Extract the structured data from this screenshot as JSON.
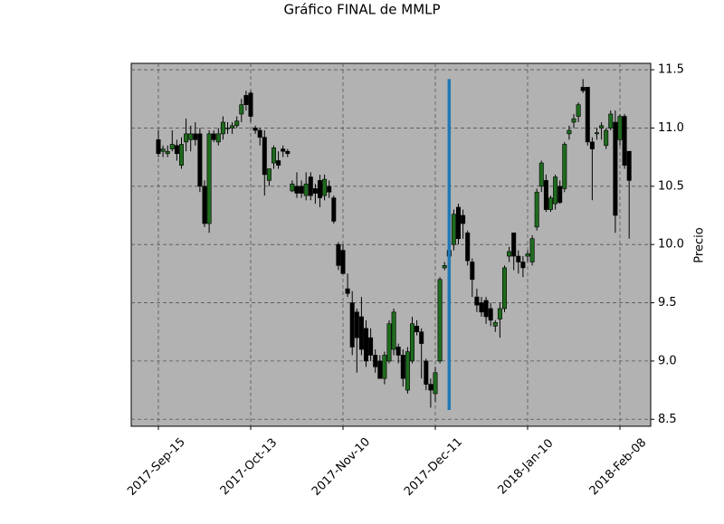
{
  "chart_data": {
    "type": "candlestick",
    "title": "Gráfico FINAL de MMLP",
    "ylabel": "Precio",
    "categories": [
      "2017-Sep-15",
      null,
      null,
      null,
      null,
      null,
      null,
      null,
      null,
      null,
      null,
      null,
      null,
      null,
      null,
      null,
      null,
      null,
      null,
      null,
      "2017-Oct-13",
      null,
      null,
      null,
      null,
      null,
      null,
      null,
      null,
      null,
      null,
      null,
      null,
      null,
      null,
      null,
      null,
      null,
      null,
      null,
      "2017-Nov-10",
      null,
      null,
      null,
      null,
      null,
      null,
      null,
      null,
      null,
      null,
      null,
      null,
      null,
      null,
      null,
      null,
      null,
      null,
      null,
      "2017-Dec-11",
      null,
      null,
      null,
      null,
      null,
      null,
      null,
      null,
      null,
      null,
      null,
      null,
      null,
      null,
      null,
      null,
      null,
      null,
      null,
      "2018-Jan-10",
      null,
      null,
      null,
      null,
      null,
      null,
      null,
      null,
      null,
      null,
      null,
      null,
      null,
      null,
      null,
      null,
      null,
      null,
      null,
      "2018-Feb-08",
      null,
      null
    ],
    "open": [
      10.9,
      10.8,
      10.78,
      10.82,
      10.85,
      10.68,
      10.88,
      10.9,
      10.95,
      10.95,
      10.5,
      10.18,
      10.95,
      10.88,
      10.95,
      11.0,
      11.0,
      11.02,
      11.12,
      11.28,
      11.3,
      11.0,
      10.98,
      10.92,
      10.55,
      10.7,
      10.72,
      10.82,
      10.8,
      10.46,
      10.5,
      10.5,
      10.42,
      10.58,
      10.48,
      10.55,
      10.42,
      10.5,
      10.4,
      10.0,
      9.95,
      9.62,
      9.5,
      9.42,
      9.38,
      9.28,
      9.2,
      9.05,
      9.0,
      8.85,
      9.0,
      9.1,
      9.12,
      9.05,
      8.75,
      9.0,
      9.3,
      9.25,
      9.0,
      8.8,
      8.72,
      9.0,
      9.8,
      9.95,
      10.0,
      10.32,
      10.25,
      10.1,
      9.85,
      9.55,
      9.5,
      9.52,
      9.45,
      9.3,
      9.36,
      9.45,
      9.9,
      10.1,
      9.9,
      9.85,
      9.9,
      9.85,
      10.15,
      10.5,
      10.55,
      10.3,
      10.35,
      10.5,
      10.48,
      10.95,
      11.05,
      11.1,
      11.35,
      11.35,
      10.88,
      10.95,
      11.0,
      10.85,
      11.0,
      11.05,
      10.9,
      11.1,
      10.8
    ],
    "high": [
      10.98,
      10.85,
      10.85,
      10.98,
      10.9,
      10.92,
      11.08,
      11.02,
      11.05,
      11.0,
      10.55,
      10.98,
      10.98,
      11.0,
      11.1,
      11.05,
      11.05,
      11.1,
      11.25,
      11.32,
      11.32,
      11.02,
      11.0,
      10.98,
      10.65,
      10.85,
      10.8,
      10.85,
      10.82,
      10.55,
      10.62,
      10.55,
      10.62,
      10.62,
      10.52,
      10.6,
      10.6,
      10.55,
      10.42,
      10.02,
      10.0,
      9.75,
      9.6,
      9.45,
      9.55,
      9.35,
      9.28,
      9.1,
      9.05,
      9.08,
      9.35,
      9.45,
      9.15,
      9.1,
      9.12,
      9.38,
      9.35,
      9.28,
      9.02,
      8.85,
      8.95,
      9.72,
      9.85,
      10.0,
      10.3,
      10.35,
      10.3,
      10.12,
      9.88,
      9.62,
      9.55,
      9.55,
      9.5,
      9.35,
      9.5,
      9.82,
      9.98,
      10.1,
      9.95,
      9.9,
      9.95,
      10.08,
      10.48,
      10.72,
      10.6,
      10.42,
      10.6,
      10.55,
      10.88,
      11.02,
      11.12,
      11.22,
      11.42,
      11.35,
      10.92,
      11.0,
      11.05,
      11.0,
      11.15,
      11.15,
      11.12,
      11.12,
      10.8
    ],
    "low": [
      10.75,
      10.75,
      10.75,
      10.8,
      10.72,
      10.65,
      10.8,
      10.8,
      10.85,
      10.45,
      10.15,
      10.1,
      10.88,
      10.85,
      10.9,
      10.95,
      10.95,
      11.0,
      11.05,
      11.15,
      11.05,
      10.95,
      10.85,
      10.42,
      10.5,
      10.65,
      10.65,
      10.75,
      10.75,
      10.45,
      10.4,
      10.4,
      10.38,
      10.38,
      10.35,
      10.32,
      10.38,
      10.4,
      10.18,
      9.78,
      9.75,
      9.55,
      9.05,
      8.9,
      9.05,
      8.95,
      9.0,
      8.9,
      8.85,
      8.8,
      8.98,
      9.05,
      8.98,
      8.78,
      8.72,
      8.98,
      9.22,
      8.85,
      8.75,
      8.6,
      8.65,
      8.98,
      9.78,
      9.88,
      9.95,
      10.0,
      10.05,
      9.82,
      9.55,
      9.42,
      9.38,
      9.32,
      9.3,
      9.25,
      9.2,
      9.42,
      9.85,
      9.78,
      9.75,
      9.72,
      9.85,
      9.82,
      10.12,
      10.45,
      10.28,
      10.28,
      10.3,
      10.35,
      10.45,
      10.9,
      11.0,
      11.05,
      11.3,
      10.85,
      10.38,
      10.9,
      10.9,
      10.82,
      10.98,
      10.1,
      10.85,
      10.65,
      10.05
    ],
    "close": [
      10.78,
      10.82,
      10.8,
      10.86,
      10.78,
      10.86,
      10.95,
      10.95,
      10.9,
      10.5,
      10.18,
      10.95,
      10.9,
      10.95,
      11.05,
      11.0,
      11.02,
      11.06,
      11.2,
      11.2,
      11.1,
      10.98,
      10.92,
      10.6,
      10.65,
      10.83,
      10.68,
      10.8,
      10.78,
      10.52,
      10.44,
      10.44,
      10.52,
      10.42,
      10.44,
      10.4,
      10.56,
      10.45,
      10.2,
      9.82,
      9.75,
      9.58,
      9.12,
      9.2,
      9.1,
      9.0,
      9.05,
      8.95,
      8.85,
      9.05,
      9.32,
      9.42,
      9.05,
      8.85,
      9.08,
      9.32,
      9.25,
      9.15,
      8.8,
      8.75,
      8.9,
      9.7,
      9.82,
      9.9,
      10.26,
      10.05,
      10.18,
      9.86,
      9.7,
      9.48,
      9.42,
      9.38,
      9.35,
      9.33,
      9.45,
      9.8,
      9.94,
      9.9,
      9.85,
      9.8,
      9.92,
      10.05,
      10.45,
      10.7,
      10.3,
      10.4,
      10.58,
      10.36,
      10.86,
      10.98,
      11.08,
      11.2,
      11.32,
      10.88,
      10.82,
      10.96,
      11.02,
      10.98,
      11.12,
      10.25,
      11.1,
      10.68,
      10.55
    ],
    "up_color": "#1e6b1e",
    "down_color": "#000000",
    "background": "#b2b2b2",
    "grid": true,
    "vline": {
      "x": 63,
      "ymin": 8.58,
      "ymax": 11.42,
      "color": "#1f77b4"
    },
    "ylim": [
      8.44,
      11.555
    ],
    "yticks": [
      8.5,
      {
        "value": 9,
        "label": "9.0"
      },
      9.5,
      {
        "value": 10,
        "label": "10.0"
      },
      10.5,
      {
        "value": 11,
        "label": "11.0"
      },
      11.5
    ]
  }
}
